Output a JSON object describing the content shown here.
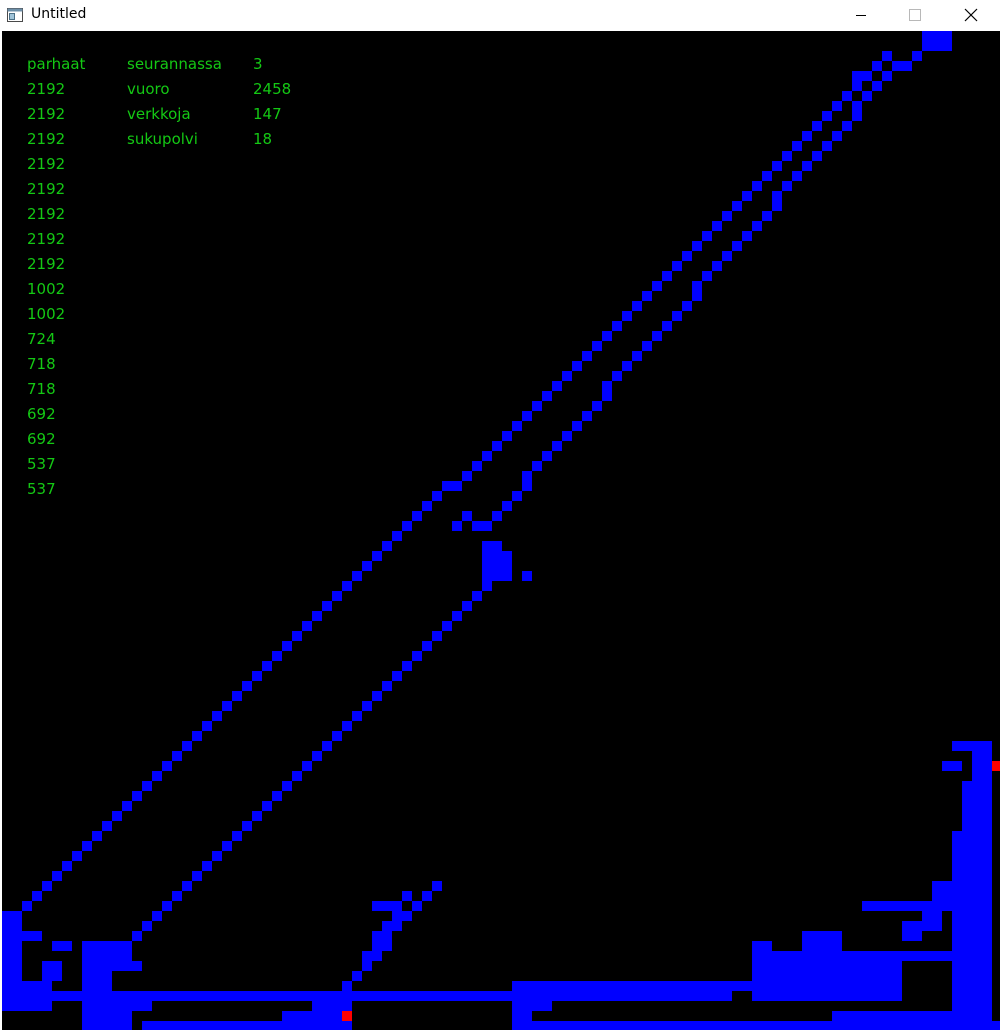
{
  "window": {
    "title": "Untitled",
    "icon": "app-window-icon",
    "buttons": [
      "minimize-icon",
      "maximize-icon",
      "close-icon"
    ]
  },
  "colors": {
    "background": "#000000",
    "wall": "#0000ff",
    "marker": "#ff0000",
    "text": "#14c814"
  },
  "scores": {
    "header": "parhaat",
    "values": [
      "2192",
      "2192",
      "2192",
      "2192",
      "2192",
      "2192",
      "2192",
      "2192",
      "1002",
      "1002",
      "724",
      "718",
      "718",
      "692",
      "692",
      "537",
      "537"
    ]
  },
  "stats": [
    {
      "label": "seurannassa",
      "value": "3"
    },
    {
      "label": "vuoro",
      "value": "2458"
    },
    {
      "label": "verkkoja",
      "value": "147"
    },
    {
      "label": "sukupolvi",
      "value": "18"
    }
  ]
}
